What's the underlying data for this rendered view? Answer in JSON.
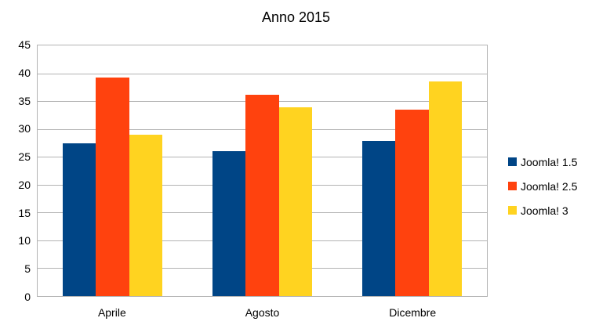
{
  "chart_data": {
    "type": "bar",
    "title": "Anno 2015",
    "categories": [
      "Aprile",
      "Agosto",
      "Dicembre"
    ],
    "series": [
      {
        "name": "Joomla! 1.5",
        "color": "#004586",
        "values": [
          27.4,
          26.0,
          27.8
        ]
      },
      {
        "name": "Joomla! 2.5",
        "color": "#FF420E",
        "values": [
          39.3,
          36.2,
          33.5
        ]
      },
      {
        "name": "Joomla! 3",
        "color": "#FFD320",
        "values": [
          29.0,
          33.9,
          38.5
        ]
      }
    ],
    "xlabel": "",
    "ylabel": "",
    "ylim": [
      0,
      45
    ],
    "ytick_step": 5,
    "yticks": [
      "45",
      "40",
      "35",
      "30",
      "25",
      "20",
      "15",
      "10",
      "5",
      "0"
    ],
    "grid": true,
    "legend_position": "right",
    "colors": {
      "background": "#ffffff",
      "grid": "#b3b3b3",
      "text": "#000000"
    }
  }
}
